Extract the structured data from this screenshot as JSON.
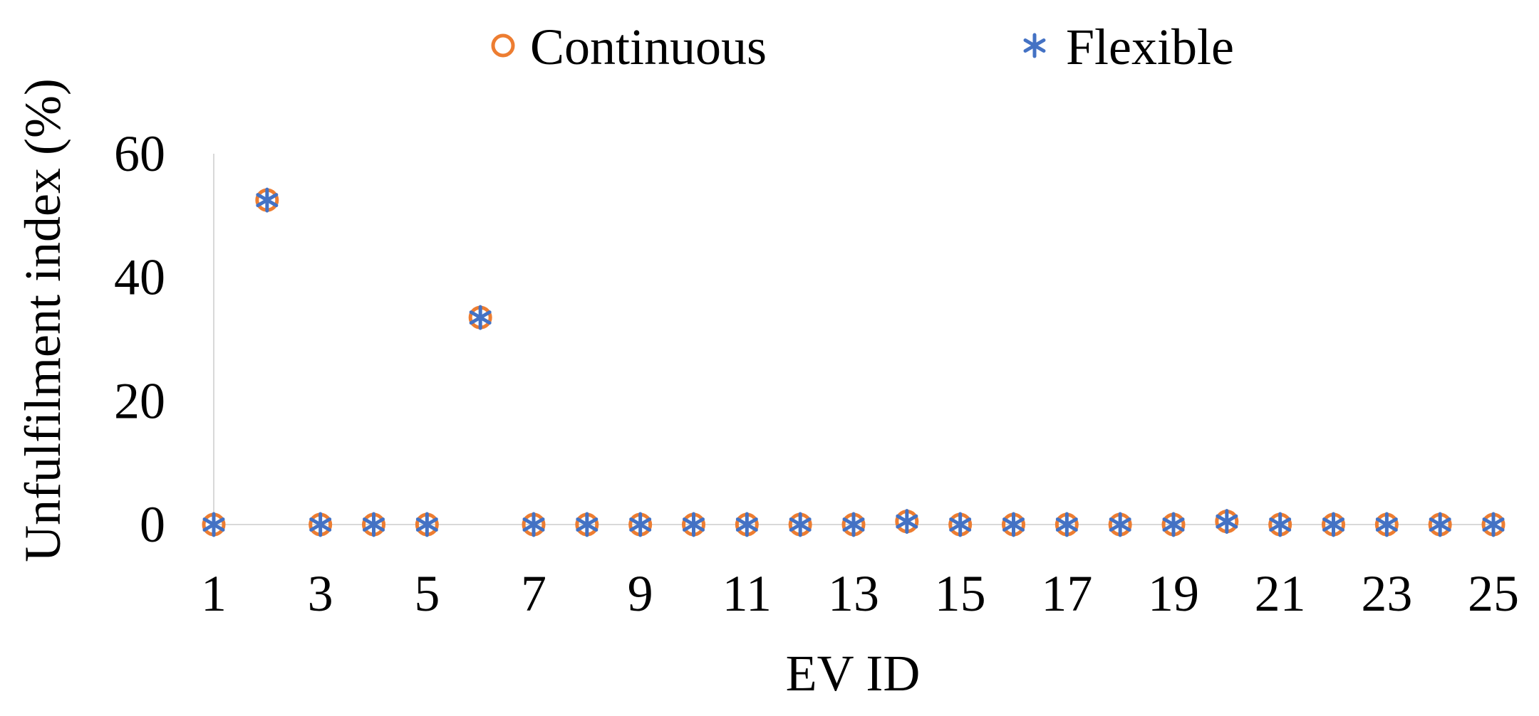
{
  "chart_data": {
    "type": "scatter",
    "xlabel": "EV ID",
    "ylabel": "Unfulfilment index (%)",
    "xlim": [
      1,
      25
    ],
    "ylim": [
      0,
      60
    ],
    "x_ticks": [
      1,
      3,
      5,
      7,
      9,
      11,
      13,
      15,
      17,
      19,
      21,
      23,
      25
    ],
    "y_ticks": [
      0,
      20,
      40,
      60
    ],
    "grid": false,
    "legend_position": "top",
    "x": [
      1,
      2,
      3,
      4,
      5,
      6,
      7,
      8,
      9,
      10,
      11,
      12,
      13,
      14,
      15,
      16,
      17,
      18,
      19,
      20,
      21,
      22,
      23,
      24,
      25
    ],
    "series": [
      {
        "name": "Continuous",
        "marker": "circle",
        "color": "#ED7D31",
        "values": [
          0,
          52.5,
          0,
          0,
          0,
          33.5,
          0,
          0,
          0,
          0,
          0,
          0,
          0,
          0.5,
          0,
          0,
          0,
          0,
          0,
          0.5,
          0,
          0,
          0,
          0,
          0
        ]
      },
      {
        "name": "Flexible",
        "marker": "asterisk",
        "color": "#4472C4",
        "values": [
          0,
          52.5,
          0,
          0,
          0,
          33.5,
          0,
          0,
          0,
          0,
          0,
          0,
          0,
          0.5,
          0,
          0,
          0,
          0,
          0,
          0.5,
          0,
          0,
          0,
          0,
          0
        ]
      }
    ]
  }
}
